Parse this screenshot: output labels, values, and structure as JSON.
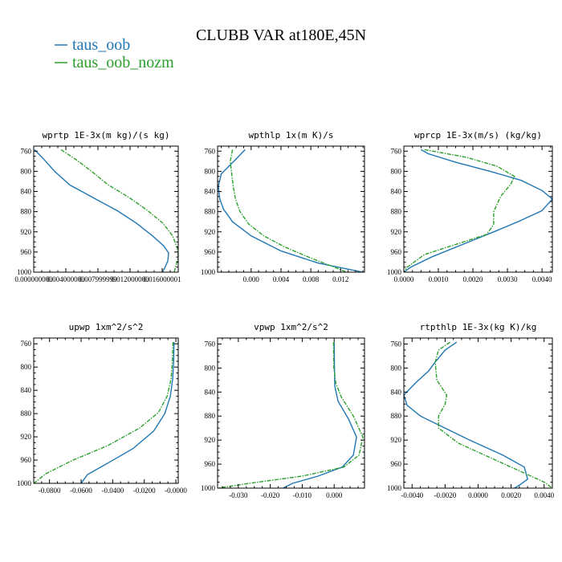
{
  "figure": {
    "title": "CLUBB VAR at180E,45N",
    "legend": [
      {
        "label": "taus_oob",
        "color": "#1f77b4",
        "dash": "solid"
      },
      {
        "label": "taus_oob_nozm",
        "color": "#2ca02c",
        "dash": "dashed"
      }
    ]
  },
  "chart_data": [
    {
      "type": "line",
      "title": "wprtp  1E-3x(m kg)/(s kg)",
      "xlim": [
        0.0,
        0.018
      ],
      "ylim": [
        1000,
        750
      ],
      "xticks": [
        0.0,
        0.004,
        0.008,
        0.012,
        0.016
      ],
      "xtick_labels": [
        "0.000000000",
        "0.004000000",
        "0.007999999",
        "0.012000000",
        "0.016000001"
      ],
      "yticks": [
        760,
        800,
        840,
        880,
        920,
        960,
        1000
      ],
      "series": [
        {
          "name": "taus_oob",
          "points": [
            [
              0.0001,
              757
            ],
            [
              0.0012,
              775
            ],
            [
              0.0026,
              800
            ],
            [
              0.0045,
              827
            ],
            [
              0.0075,
              853
            ],
            [
              0.0104,
              878
            ],
            [
              0.0128,
              903
            ],
            [
              0.0148,
              928
            ],
            [
              0.0162,
              948
            ],
            [
              0.0168,
              962
            ],
            [
              0.0167,
              978
            ],
            [
              0.0163,
              992
            ],
            [
              0.016,
              1000
            ]
          ]
        },
        {
          "name": "taus_oob_nozm",
          "points": [
            [
              0.0034,
              757
            ],
            [
              0.0053,
              777
            ],
            [
              0.0072,
              800
            ],
            [
              0.0093,
              827
            ],
            [
              0.0119,
              852
            ],
            [
              0.0142,
              878
            ],
            [
              0.0161,
              903
            ],
            [
              0.0173,
              928
            ],
            [
              0.0179,
              953
            ],
            [
              0.018,
              970
            ],
            [
              0.0177,
              988
            ],
            [
              0.0175,
              1000
            ]
          ]
        }
      ]
    },
    {
      "type": "line",
      "title": "wpthlp  1x(m K)/s",
      "xlim": [
        -0.0045,
        0.0152
      ],
      "ylim": [
        1000,
        750
      ],
      "xticks": [
        0.0,
        0.004,
        0.008,
        0.012
      ],
      "xtick_labels": [
        "0.000",
        "0.004",
        "0.008",
        "0.012"
      ],
      "yticks": [
        760,
        800,
        840,
        880,
        920,
        960,
        1000
      ],
      "series": [
        {
          "name": "taus_oob",
          "points": [
            [
              -0.0008,
              757
            ],
            [
              -0.0023,
              780
            ],
            [
              -0.004,
              805
            ],
            [
              -0.0044,
              830
            ],
            [
              -0.0042,
              855
            ],
            [
              -0.0037,
              875
            ],
            [
              -0.0025,
              900
            ],
            [
              0.0,
              928
            ],
            [
              0.004,
              958
            ],
            [
              0.009,
              982
            ],
            [
              0.015,
              1000
            ]
          ]
        },
        {
          "name": "taus_oob_nozm",
          "points": [
            [
              -0.0025,
              757
            ],
            [
              -0.0028,
              780
            ],
            [
              -0.0026,
              805
            ],
            [
              -0.0024,
              830
            ],
            [
              -0.0021,
              855
            ],
            [
              -0.0015,
              880
            ],
            [
              -0.0003,
              905
            ],
            [
              0.0017,
              928
            ],
            [
              0.0045,
              950
            ],
            [
              0.008,
              972
            ],
            [
              0.0115,
              992
            ],
            [
              0.0128,
              1000
            ]
          ]
        }
      ]
    },
    {
      "type": "line",
      "title": "wprcp  1E-3x(m/s) (kg/kg)",
      "xlim": [
        0.0,
        0.0043
      ],
      "ylim": [
        1000,
        750
      ],
      "xticks": [
        0.0,
        0.001,
        0.002,
        0.003,
        0.004
      ],
      "xtick_labels": [
        "0.0000",
        "0.0010",
        "0.0020",
        "0.0030",
        "0.0040"
      ],
      "yticks": [
        760,
        800,
        840,
        880,
        920,
        960,
        1000
      ],
      "series": [
        {
          "name": "taus_oob",
          "points": [
            [
              0.0005,
              757
            ],
            [
              0.0007,
              765
            ],
            [
              0.0015,
              782
            ],
            [
              0.0025,
              800
            ],
            [
              0.0034,
              818
            ],
            [
              0.004,
              838
            ],
            [
              0.0043,
              855
            ],
            [
              0.004,
              878
            ],
            [
              0.0033,
              900
            ],
            [
              0.0026,
              920
            ],
            [
              0.0017,
              945
            ],
            [
              0.0008,
              970
            ],
            [
              0.0002,
              990
            ],
            [
              0.0,
              1000
            ]
          ]
        },
        {
          "name": "taus_oob_nozm",
          "points": [
            [
              0.0006,
              757
            ],
            [
              0.0018,
              772
            ],
            [
              0.0027,
              790
            ],
            [
              0.0032,
              810
            ],
            [
              0.0031,
              825
            ],
            [
              0.0028,
              850
            ],
            [
              0.0026,
              880
            ],
            [
              0.0026,
              905
            ],
            [
              0.0024,
              925
            ],
            [
              0.0015,
              945
            ],
            [
              0.0006,
              965
            ],
            [
              0.0001,
              990
            ],
            [
              0.0,
              1000
            ]
          ]
        }
      ]
    },
    {
      "type": "line",
      "title": "upwp  1xm^2/s^2",
      "xlim": [
        -0.09,
        0.0015
      ],
      "ylim": [
        1000,
        750
      ],
      "xticks": [
        -0.08,
        -0.06,
        -0.04,
        -0.02,
        0.0
      ],
      "xtick_labels": [
        "-0.0800",
        "-0.0600",
        "-0.0400",
        "-0.0200",
        "-0.0000"
      ],
      "yticks": [
        760,
        800,
        840,
        880,
        920,
        960,
        1000
      ],
      "series": [
        {
          "name": "taus_oob",
          "points": [
            [
              -0.0012,
              757
            ],
            [
              -0.0014,
              790
            ],
            [
              -0.002,
              820
            ],
            [
              -0.0035,
              850
            ],
            [
              -0.007,
              880
            ],
            [
              -0.014,
              910
            ],
            [
              -0.027,
              940
            ],
            [
              -0.043,
              965
            ],
            [
              -0.056,
              985
            ],
            [
              -0.06,
              1000
            ]
          ]
        },
        {
          "name": "taus_oob_nozm",
          "points": [
            [
              -0.0018,
              757
            ],
            [
              -0.0022,
              790
            ],
            [
              -0.003,
              820
            ],
            [
              -0.0055,
              850
            ],
            [
              -0.011,
              878
            ],
            [
              -0.023,
              905
            ],
            [
              -0.043,
              935
            ],
            [
              -0.065,
              960
            ],
            [
              -0.082,
              983
            ],
            [
              -0.09,
              1000
            ]
          ]
        }
      ]
    },
    {
      "type": "line",
      "title": "vpwp  1xm^2/s^2",
      "xlim": [
        -0.0365,
        0.0095
      ],
      "ylim": [
        1000,
        750
      ],
      "xticks": [
        -0.03,
        -0.02,
        -0.01,
        0.0
      ],
      "xtick_labels": [
        "-0.030",
        "-0.020",
        "-0.010",
        "0.000"
      ],
      "yticks": [
        760,
        800,
        840,
        880,
        920,
        960,
        1000
      ],
      "series": [
        {
          "name": "taus_oob",
          "points": [
            [
              0.0,
              757
            ],
            [
              0.0001,
              800
            ],
            [
              0.0002,
              830
            ],
            [
              0.0012,
              855
            ],
            [
              0.0045,
              885
            ],
            [
              0.007,
              915
            ],
            [
              0.006,
              945
            ],
            [
              0.0025,
              965
            ],
            [
              -0.005,
              980
            ],
            [
              -0.013,
              992
            ],
            [
              -0.016,
              1000
            ]
          ]
        },
        {
          "name": "taus_oob_nozm",
          "points": [
            [
              -0.0002,
              757
            ],
            [
              -0.0001,
              800
            ],
            [
              0.0005,
              825
            ],
            [
              0.0022,
              848
            ],
            [
              0.006,
              880
            ],
            [
              0.009,
              915
            ],
            [
              0.0078,
              945
            ],
            [
              0.003,
              965
            ],
            [
              -0.01,
              980
            ],
            [
              -0.028,
              993
            ],
            [
              -0.0365,
              1000
            ]
          ]
        }
      ]
    },
    {
      "type": "line",
      "title": "rtpthlp  1E-3x(kg K)/kg",
      "xlim": [
        -0.0045,
        0.0045
      ],
      "ylim": [
        1000,
        750
      ],
      "xticks": [
        -0.004,
        -0.002,
        0.0,
        0.002,
        0.004
      ],
      "xtick_labels": [
        "-0.0040",
        "-0.0020",
        "0.0000",
        "0.0020",
        "0.0040"
      ],
      "yticks": [
        760,
        800,
        840,
        880,
        920,
        960,
        1000
      ],
      "series": [
        {
          "name": "taus_oob",
          "points": [
            [
              -0.0013,
              757
            ],
            [
              -0.002,
              770
            ],
            [
              -0.0026,
              790
            ],
            [
              -0.003,
              805
            ],
            [
              -0.0038,
              825
            ],
            [
              -0.0045,
              845
            ],
            [
              -0.0043,
              862
            ],
            [
              -0.0035,
              880
            ],
            [
              -0.002,
              900
            ],
            [
              -0.0005,
              920
            ],
            [
              0.0015,
              945
            ],
            [
              0.0028,
              965
            ],
            [
              0.003,
              985
            ],
            [
              0.0025,
              995
            ],
            [
              0.0022,
              1000
            ]
          ]
        },
        {
          "name": "taus_oob_nozm",
          "points": [
            [
              -0.0017,
              757
            ],
            [
              -0.0024,
              770
            ],
            [
              -0.0026,
              790
            ],
            [
              -0.0025,
              820
            ],
            [
              -0.0019,
              845
            ],
            [
              -0.002,
              860
            ],
            [
              -0.0024,
              880
            ],
            [
              -0.0024,
              900
            ],
            [
              -0.0012,
              925
            ],
            [
              0.0008,
              950
            ],
            [
              0.0028,
              975
            ],
            [
              0.004,
              990
            ],
            [
              0.0045,
              1000
            ]
          ]
        }
      ]
    }
  ]
}
